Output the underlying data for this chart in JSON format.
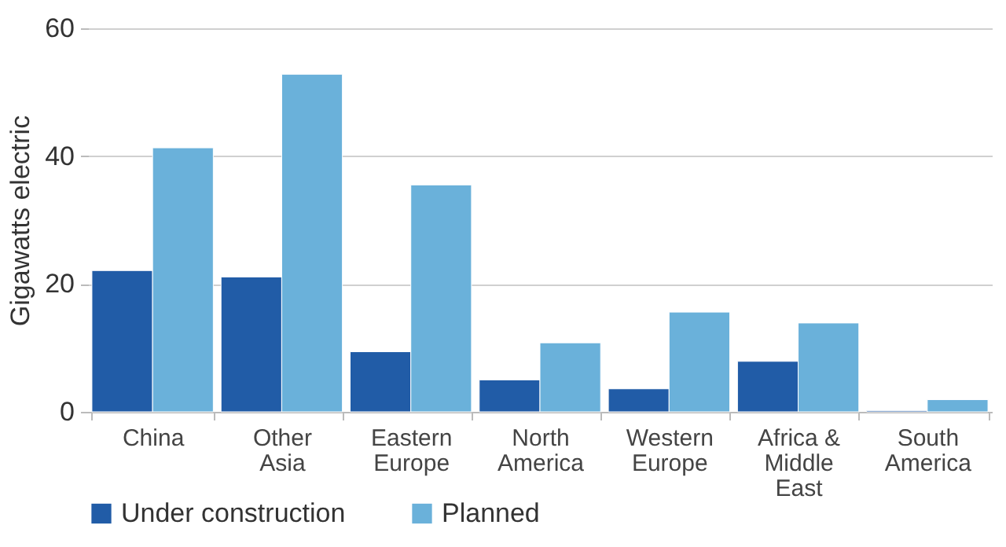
{
  "chart_data": {
    "type": "bar",
    "ylabel": "Gigawatts electric",
    "categories": [
      "China",
      "Other\nAsia",
      "Eastern\nEurope",
      "North\nAmerica",
      "Western\nEurope",
      "Africa &\nMiddle\nEast",
      "South\nAmerica"
    ],
    "series": [
      {
        "name": "Under construction",
        "color": "#215ca7",
        "values": [
          22.1,
          21.1,
          9.4,
          5,
          3.6,
          7.9,
          0.2
        ]
      },
      {
        "name": "Planned",
        "color": "#6ab1da",
        "values": [
          41.3,
          52.8,
          35.5,
          10.8,
          15.6,
          13.9,
          1.9
        ]
      }
    ],
    "ylim": [
      0,
      60
    ],
    "yticks": [
      0,
      20,
      40,
      60
    ],
    "grid": "y",
    "legend": "bottom"
  }
}
